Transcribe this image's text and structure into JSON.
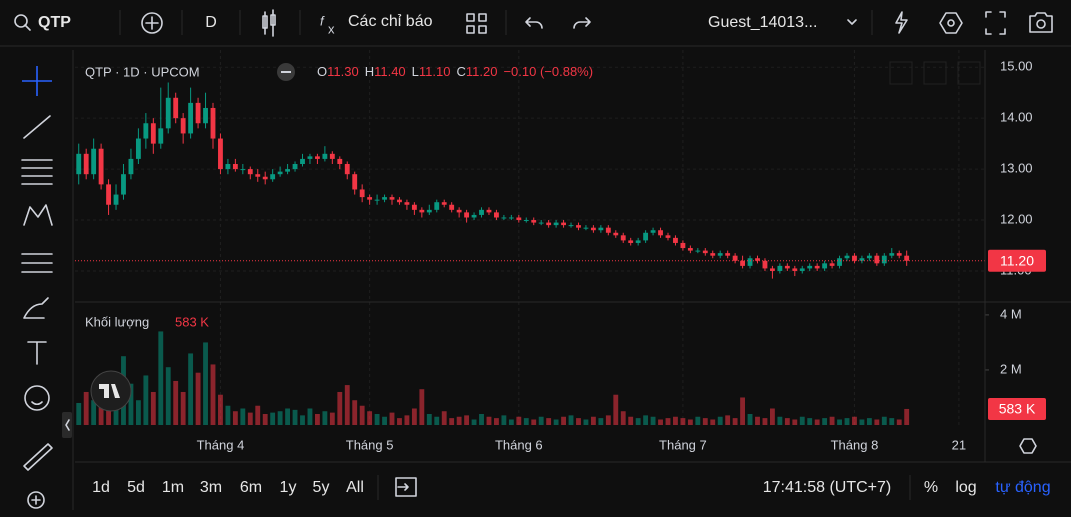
{
  "toolbar": {
    "symbol": "QTP",
    "interval": "D",
    "indicators": "Các chỉ báo",
    "user": "Guest_14013..."
  },
  "legend": {
    "title": "QTP · 1D · UPCOM",
    "open_label": "O",
    "open": "11.30",
    "high_label": "H",
    "high": "11.40",
    "low_label": "L",
    "low": "11.10",
    "close_label": "C",
    "close": "11.20",
    "change": "−0.10 (−0.88%)"
  },
  "chart_data": {
    "type": "candlestick",
    "up_color": "#089981",
    "down_color": "#f23645",
    "grid": true,
    "xlim": [
      -0.5,
      121.5
    ],
    "xticks": [
      {
        "value": 19,
        "label": "Tháng 4"
      },
      {
        "value": 39,
        "label": "Tháng 5"
      },
      {
        "value": 59,
        "label": "Tháng 6"
      },
      {
        "value": 81,
        "label": "Tháng 7"
      },
      {
        "value": 104,
        "label": "Tháng 8"
      },
      {
        "value": 118,
        "label": "21"
      }
    ],
    "ylim": [
      10.43,
      15.24
    ],
    "yticks": [
      {
        "value": 11,
        "label": "11.00"
      },
      {
        "value": 12,
        "label": "12.00"
      },
      {
        "value": 13,
        "label": "13.00"
      },
      {
        "value": 14,
        "label": "14.00"
      },
      {
        "value": 15,
        "label": "15.00"
      }
    ],
    "last_price": {
      "value": 11.2,
      "label": "11.20"
    },
    "ohlc": [
      [
        12.9,
        13.5,
        12.7,
        13.3
      ],
      [
        13.3,
        13.4,
        12.8,
        12.9
      ],
      [
        12.9,
        13.6,
        12.8,
        13.4
      ],
      [
        13.4,
        13.5,
        12.6,
        12.7
      ],
      [
        12.7,
        12.8,
        12.1,
        12.3
      ],
      [
        12.3,
        12.7,
        12.2,
        12.5
      ],
      [
        12.5,
        13.1,
        12.4,
        12.9
      ],
      [
        12.9,
        13.4,
        12.8,
        13.2
      ],
      [
        13.2,
        13.8,
        13.1,
        13.6
      ],
      [
        13.6,
        14.1,
        13.4,
        13.9
      ],
      [
        13.9,
        14.0,
        13.3,
        13.5
      ],
      [
        13.5,
        14.6,
        13.4,
        13.8
      ],
      [
        13.8,
        14.7,
        13.7,
        14.4
      ],
      [
        14.4,
        14.5,
        13.9,
        14.0
      ],
      [
        14.0,
        14.1,
        13.5,
        13.7
      ],
      [
        13.7,
        14.6,
        13.6,
        14.3
      ],
      [
        14.3,
        14.4,
        13.8,
        13.9
      ],
      [
        13.9,
        14.5,
        13.8,
        14.2
      ],
      [
        14.2,
        14.3,
        13.4,
        13.6
      ],
      [
        13.6,
        13.7,
        12.9,
        13.0
      ],
      [
        13.0,
        13.2,
        12.9,
        13.1
      ],
      [
        13.1,
        13.2,
        12.95,
        13.0
      ],
      [
        13.0,
        13.1,
        12.9,
        13.0
      ],
      [
        13.0,
        13.05,
        12.8,
        12.9
      ],
      [
        12.9,
        13.0,
        12.75,
        12.85
      ],
      [
        12.85,
        12.95,
        12.7,
        12.8
      ],
      [
        12.8,
        13.0,
        12.75,
        12.9
      ],
      [
        12.9,
        13.05,
        12.85,
        12.95
      ],
      [
        12.95,
        13.1,
        12.9,
        13.0
      ],
      [
        13.0,
        13.15,
        12.95,
        13.1
      ],
      [
        13.1,
        13.3,
        13.05,
        13.2
      ],
      [
        13.2,
        13.3,
        13.1,
        13.25
      ],
      [
        13.25,
        13.3,
        13.1,
        13.2
      ],
      [
        13.2,
        13.45,
        13.15,
        13.3
      ],
      [
        13.3,
        13.35,
        13.1,
        13.2
      ],
      [
        13.2,
        13.25,
        13.0,
        13.1
      ],
      [
        13.1,
        13.15,
        12.8,
        12.9
      ],
      [
        12.9,
        12.95,
        12.5,
        12.6
      ],
      [
        12.6,
        12.7,
        12.35,
        12.45
      ],
      [
        12.45,
        12.5,
        12.3,
        12.4
      ],
      [
        12.4,
        12.5,
        12.3,
        12.4
      ],
      [
        12.4,
        12.5,
        12.35,
        12.45
      ],
      [
        12.45,
        12.5,
        12.3,
        12.4
      ],
      [
        12.4,
        12.45,
        12.3,
        12.35
      ],
      [
        12.35,
        12.4,
        12.2,
        12.3
      ],
      [
        12.3,
        12.35,
        12.1,
        12.2
      ],
      [
        12.2,
        12.25,
        12.05,
        12.15
      ],
      [
        12.15,
        12.3,
        12.1,
        12.2
      ],
      [
        12.2,
        12.4,
        12.15,
        12.35
      ],
      [
        12.35,
        12.4,
        12.25,
        12.3
      ],
      [
        12.3,
        12.35,
        12.15,
        12.2
      ],
      [
        12.2,
        12.25,
        12.05,
        12.15
      ],
      [
        12.15,
        12.2,
        11.95,
        12.05
      ],
      [
        12.05,
        12.15,
        12.0,
        12.1
      ],
      [
        12.1,
        12.25,
        12.05,
        12.2
      ],
      [
        12.2,
        12.25,
        12.1,
        12.15
      ],
      [
        12.15,
        12.2,
        12.0,
        12.05
      ],
      [
        12.05,
        12.1,
        12.0,
        12.05
      ],
      [
        12.05,
        12.1,
        12.0,
        12.05
      ],
      [
        12.05,
        12.1,
        11.95,
        12.0
      ],
      [
        12.0,
        12.05,
        11.95,
        12.0
      ],
      [
        12.0,
        12.05,
        11.9,
        11.95
      ],
      [
        11.95,
        12.0,
        11.9,
        11.95
      ],
      [
        11.95,
        12.0,
        11.85,
        11.9
      ],
      [
        11.9,
        12.0,
        11.85,
        11.95
      ],
      [
        11.95,
        12.0,
        11.85,
        11.9
      ],
      [
        11.9,
        11.95,
        11.85,
        11.9
      ],
      [
        11.9,
        11.95,
        11.8,
        11.85
      ],
      [
        11.85,
        11.9,
        11.8,
        11.85
      ],
      [
        11.85,
        11.9,
        11.75,
        11.8
      ],
      [
        11.8,
        11.9,
        11.75,
        11.85
      ],
      [
        11.85,
        11.9,
        11.7,
        11.75
      ],
      [
        11.75,
        11.8,
        11.65,
        11.7
      ],
      [
        11.7,
        11.75,
        11.55,
        11.6
      ],
      [
        11.6,
        11.65,
        11.5,
        11.55
      ],
      [
        11.55,
        11.65,
        11.5,
        11.6
      ],
      [
        11.6,
        11.8,
        11.55,
        11.75
      ],
      [
        11.75,
        11.85,
        11.7,
        11.8
      ],
      [
        11.8,
        11.85,
        11.65,
        11.7
      ],
      [
        11.7,
        11.75,
        11.6,
        11.65
      ],
      [
        11.65,
        11.7,
        11.5,
        11.55
      ],
      [
        11.55,
        11.6,
        11.4,
        11.45
      ],
      [
        11.45,
        11.5,
        11.35,
        11.4
      ],
      [
        11.4,
        11.45,
        11.35,
        11.4
      ],
      [
        11.4,
        11.45,
        11.3,
        11.35
      ],
      [
        11.35,
        11.4,
        11.25,
        11.3
      ],
      [
        11.3,
        11.4,
        11.25,
        11.35
      ],
      [
        11.35,
        11.4,
        11.25,
        11.3
      ],
      [
        11.3,
        11.35,
        11.15,
        11.2
      ],
      [
        11.2,
        11.3,
        11.05,
        11.1
      ],
      [
        11.1,
        11.3,
        11.05,
        11.25
      ],
      [
        11.25,
        11.3,
        11.15,
        11.2
      ],
      [
        11.2,
        11.25,
        11.0,
        11.05
      ],
      [
        11.05,
        11.1,
        10.85,
        11.0
      ],
      [
        11.0,
        11.15,
        10.95,
        11.1
      ],
      [
        11.1,
        11.15,
        11.0,
        11.05
      ],
      [
        11.05,
        11.1,
        10.9,
        11.0
      ],
      [
        11.0,
        11.1,
        10.95,
        11.05
      ],
      [
        11.05,
        11.15,
        11.0,
        11.1
      ],
      [
        11.1,
        11.15,
        11.0,
        11.05
      ],
      [
        11.05,
        11.2,
        11.0,
        11.15
      ],
      [
        11.15,
        11.2,
        11.05,
        11.1
      ],
      [
        11.1,
        11.3,
        11.05,
        11.25
      ],
      [
        11.25,
        11.35,
        11.2,
        11.3
      ],
      [
        11.3,
        11.35,
        11.15,
        11.2
      ],
      [
        11.2,
        11.3,
        11.15,
        11.25
      ],
      [
        11.25,
        11.35,
        11.2,
        11.3
      ],
      [
        11.3,
        11.35,
        11.1,
        11.15
      ],
      [
        11.15,
        11.35,
        11.1,
        11.3
      ],
      [
        11.3,
        11.45,
        11.25,
        11.35
      ],
      [
        11.35,
        11.4,
        11.25,
        11.3
      ],
      [
        11.3,
        11.4,
        11.1,
        11.2
      ]
    ],
    "volume": {
      "name": "Khối lượng",
      "last_label": "583 K",
      "ylim": [
        0,
        4360000
      ],
      "yticks": [
        {
          "value": 2000000,
          "label": "2 M"
        },
        {
          "value": 4000000,
          "label": "4 M"
        }
      ],
      "values": [
        800000,
        1200000,
        900000,
        700000,
        1000000,
        1100000,
        2500000,
        1500000,
        900000,
        1800000,
        1200000,
        3400000,
        2100000,
        1600000,
        1200000,
        2600000,
        1900000,
        3000000,
        2200000,
        1100000,
        700000,
        500000,
        600000,
        450000,
        700000,
        400000,
        450000,
        500000,
        600000,
        550000,
        350000,
        600000,
        400000,
        500000,
        450000,
        1200000,
        1450000,
        900000,
        700000,
        500000,
        400000,
        300000,
        450000,
        250000,
        350000,
        600000,
        1300000,
        400000,
        300000,
        500000,
        250000,
        300000,
        350000,
        200000,
        400000,
        300000,
        250000,
        350000,
        200000,
        300000,
        250000,
        200000,
        300000,
        250000,
        200000,
        300000,
        350000,
        250000,
        200000,
        300000,
        250000,
        350000,
        1100000,
        500000,
        300000,
        250000,
        350000,
        300000,
        200000,
        250000,
        300000,
        250000,
        200000,
        300000,
        250000,
        200000,
        300000,
        350000,
        250000,
        1000000,
        400000,
        300000,
        250000,
        600000,
        300000,
        250000,
        200000,
        300000,
        250000,
        200000,
        250000,
        300000,
        200000,
        250000,
        300000,
        200000,
        250000,
        200000,
        300000,
        250000,
        200000,
        583000
      ]
    }
  },
  "bottom_bar": {
    "ranges": [
      "1d",
      "5d",
      "1m",
      "3m",
      "6m",
      "1y",
      "5y",
      "All"
    ],
    "time": "17:41:58 (UTC+7)",
    "percent": "%",
    "log": "log",
    "auto": "tự động"
  }
}
